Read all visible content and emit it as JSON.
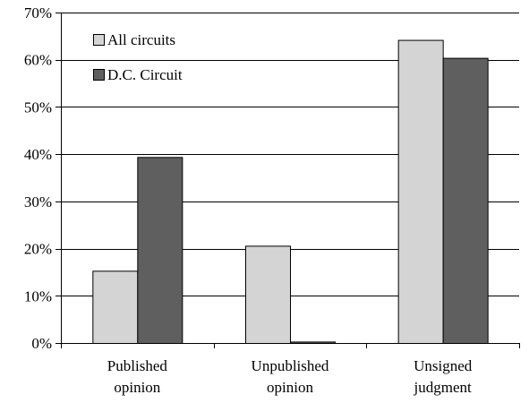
{
  "chart_data": {
    "type": "bar",
    "categories": [
      [
        "Published",
        "opinion"
      ],
      [
        "Unpublished",
        "opinion"
      ],
      [
        "Unsigned",
        "judgment"
      ]
    ],
    "series": [
      {
        "name": "All circuits",
        "color": "#d4d4d4",
        "values": [
          15.3,
          20.6,
          64.2
        ]
      },
      {
        "name": "D.C. Circuit",
        "color": "#5f5f5f",
        "values": [
          39.4,
          0.3,
          60.4
        ]
      }
    ],
    "ylim": [
      0,
      70
    ],
    "yticks": [
      0,
      10,
      20,
      30,
      40,
      50,
      60,
      70
    ],
    "ytick_labels": [
      "0%",
      "10%",
      "20%",
      "30%",
      "40%",
      "50%",
      "60%",
      "70%"
    ],
    "grid": true,
    "legend": "top-left"
  }
}
